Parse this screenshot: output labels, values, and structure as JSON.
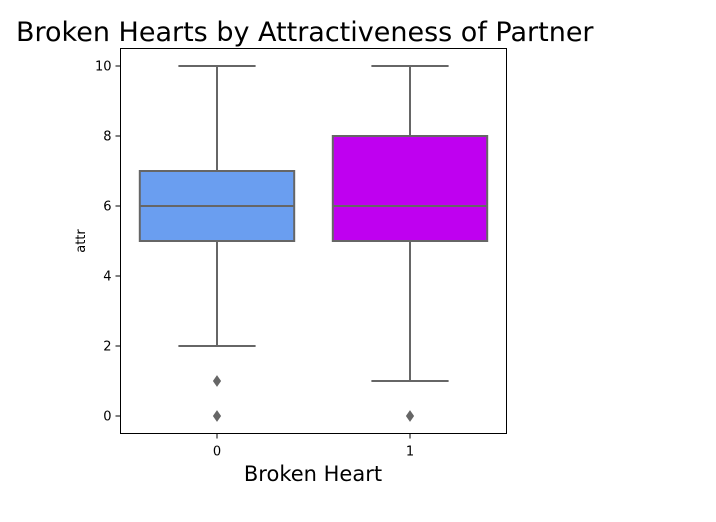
{
  "chart_data": {
    "type": "box",
    "title": "Broken Hearts by Attractiveness of Partner",
    "xlabel": "Broken Heart",
    "ylabel": "attr",
    "categories": [
      "0",
      "1"
    ],
    "ylim": [
      -0.5,
      10.5
    ],
    "yticks": [
      "0",
      "2",
      "4",
      "6",
      "8",
      "10"
    ],
    "grid": false,
    "boxes": [
      {
        "category": "0",
        "whisker_low": 2,
        "q1": 5,
        "median": 6,
        "q3": 7,
        "whisker_high": 10,
        "outliers": [
          1,
          0
        ],
        "color": "#6a9ef0"
      },
      {
        "category": "1",
        "whisker_low": 1,
        "q1": 5,
        "median": 6,
        "q3": 8,
        "whisker_high": 10,
        "outliers": [
          0
        ],
        "color": "#bf00f0"
      }
    ],
    "line_color": "#666666"
  }
}
